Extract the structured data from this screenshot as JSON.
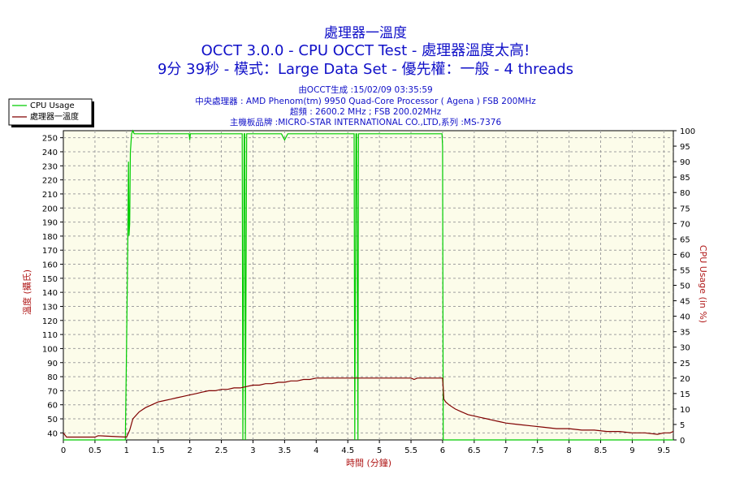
{
  "chart_data": {
    "type": "line",
    "title": "處理器一溫度",
    "subtitle_1": "OCCT 3.0.0 - CPU OCCT Test - 處理器溫度太高!",
    "subtitle_2": "9分 39秒 - 模式：Large Data Set - 優先權：一般 - 4 threads",
    "info_lines": [
      "由OCCT生成 :15/02/09 03:35:59",
      "中央處理器 : AMD Phenom(tm) 9950 Quad-Core Processor ( Agena ) FSB 200MHz",
      "超頻 : 2600.2 MHz ; FSB 200.02MHz",
      "主機板品牌 :MICRO-STAR INTERNATIONAL CO.,LTD,系列 :MS-7376"
    ],
    "xlabel": "時間 (分鐘)",
    "ylabel_left": "溫度 (攝氏)",
    "ylabel_right": "CPU Usage (in %)",
    "xlim": [
      0,
      9.65
    ],
    "ylim_left": [
      35,
      255
    ],
    "ylim_right": [
      0,
      100
    ],
    "x_ticks": [
      "0",
      "0.5",
      "1",
      "1.5",
      "2",
      "2.5",
      "3",
      "3.5",
      "4",
      "4.5",
      "5",
      "5.5",
      "6",
      "6.5",
      "7",
      "7.5",
      "8",
      "8.5",
      "9",
      "9.5"
    ],
    "y_left_ticks": [
      "40",
      "50",
      "60",
      "70",
      "80",
      "90",
      "100",
      "110",
      "120",
      "130",
      "140",
      "150",
      "160",
      "170",
      "180",
      "190",
      "200",
      "210",
      "220",
      "230",
      "240",
      "250"
    ],
    "y_right_ticks": [
      "0",
      "5",
      "10",
      "15",
      "20",
      "25",
      "30",
      "35",
      "40",
      "45",
      "50",
      "55",
      "60",
      "65",
      "70",
      "75",
      "80",
      "85",
      "90",
      "95",
      "100"
    ],
    "grid": true,
    "legend_position": "top-left",
    "series": [
      {
        "name": "CPU Usage",
        "axis": "right",
        "color": "#00cc00",
        "x": [
          0.0,
          0.98,
          1.0,
          1.02,
          1.03,
          1.04,
          1.05,
          1.06,
          1.08,
          1.1,
          1.12,
          1.2,
          1.5,
          1.99,
          2.0,
          2.01,
          2.5,
          2.83,
          2.84,
          2.86,
          2.87,
          2.88,
          2.9,
          2.91,
          3.0,
          3.45,
          3.5,
          3.55,
          4.0,
          4.6,
          4.61,
          4.63,
          4.64,
          4.66,
          4.67,
          4.68,
          4.7,
          5.0,
          5.5,
          5.99,
          6.0,
          6.01,
          6.02,
          6.05,
          9.65
        ],
        "y": [
          0,
          0,
          30,
          65,
          90,
          66,
          70,
          93,
          99,
          100,
          99,
          99,
          99,
          99,
          97,
          99,
          99,
          99,
          0,
          99,
          99,
          0,
          99,
          99,
          99,
          99,
          97,
          99,
          99,
          99,
          0,
          99,
          99,
          0,
          99,
          99,
          99,
          99,
          99,
          99,
          95,
          0,
          0,
          0,
          0
        ]
      },
      {
        "name": "處理器一溫度",
        "axis": "left",
        "color": "#800000",
        "x": [
          0.0,
          0.05,
          0.1,
          0.5,
          0.55,
          1.0,
          1.05,
          1.1,
          1.2,
          1.3,
          1.4,
          1.5,
          1.6,
          1.7,
          1.8,
          1.9,
          2.0,
          2.1,
          2.2,
          2.3,
          2.4,
          2.5,
          2.6,
          2.7,
          2.8,
          2.9,
          3.0,
          3.1,
          3.2,
          3.3,
          3.4,
          3.5,
          3.6,
          3.7,
          3.8,
          3.9,
          4.0,
          4.5,
          5.0,
          5.5,
          5.55,
          5.6,
          6.0,
          6.02,
          6.05,
          6.1,
          6.2,
          6.3,
          6.4,
          6.5,
          6.6,
          6.7,
          6.8,
          6.9,
          7.0,
          7.2,
          7.4,
          7.6,
          7.8,
          8.0,
          8.2,
          8.4,
          8.6,
          8.8,
          9.0,
          9.2,
          9.4,
          9.5,
          9.6,
          9.65
        ],
        "y": [
          40,
          37,
          37,
          37,
          38,
          37,
          42,
          50,
          55,
          58,
          60,
          62,
          63,
          64,
          65,
          66,
          67,
          68,
          69,
          70,
          70,
          71,
          71,
          72,
          72,
          73,
          74,
          74,
          75,
          75,
          76,
          76,
          77,
          77,
          78,
          78,
          79,
          79,
          79,
          79,
          78,
          79,
          79,
          64,
          62,
          60,
          57,
          55,
          53,
          52,
          51,
          50,
          49,
          48,
          47,
          46,
          45,
          44,
          43,
          43,
          42,
          42,
          41,
          41,
          40,
          40,
          39,
          40,
          40,
          41
        ]
      }
    ]
  }
}
